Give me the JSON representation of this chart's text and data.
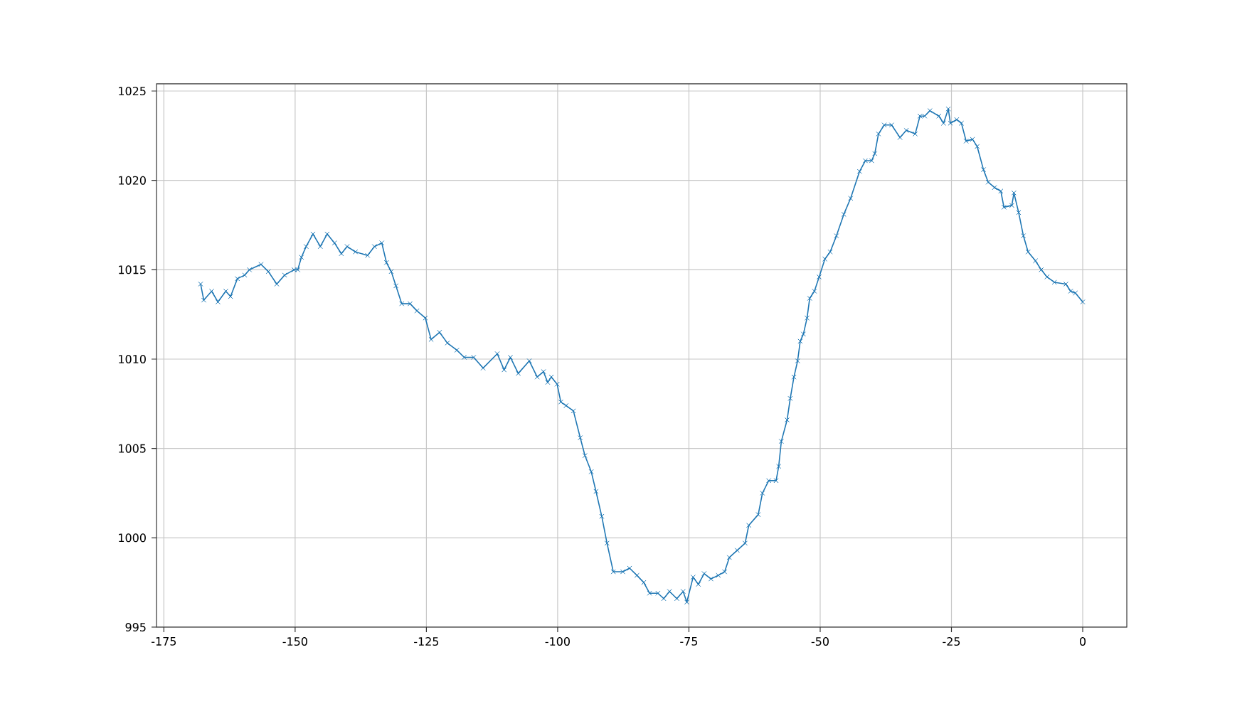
{
  "chart_data": {
    "type": "line",
    "color": "#1f77b4",
    "marker": "cross",
    "line_style": "solid",
    "grid": true,
    "xlim": [
      -176.4,
      8.4
    ],
    "ylim": [
      995,
      1025.4
    ],
    "xticks": [
      -175,
      -150,
      -125,
      -100,
      -75,
      -50,
      -25,
      0
    ],
    "yticks": [
      995,
      1000,
      1005,
      1010,
      1015,
      1020,
      1025
    ],
    "x": [
      -168.0,
      -167.4,
      -165.9,
      -164.7,
      -163.2,
      -162.3,
      -161.0,
      -159.6,
      -158.7,
      -156.5,
      -155.1,
      -153.5,
      -152.0,
      -150.2,
      -149.5,
      -148.8,
      -147.9,
      -146.6,
      -145.2,
      -143.9,
      -142.5,
      -141.2,
      -140.1,
      -138.5,
      -136.2,
      -134.9,
      -133.5,
      -132.6,
      -131.7,
      -130.8,
      -129.7,
      -128.1,
      -126.8,
      -125.2,
      -124.1,
      -122.5,
      -121.0,
      -119.2,
      -117.8,
      -116.0,
      -114.2,
      -111.5,
      -110.2,
      -109.0,
      -107.5,
      -105.4,
      -103.9,
      -102.7,
      -101.9,
      -101.2,
      -100.1,
      -99.4,
      -98.4,
      -97.0,
      -95.7,
      -94.8,
      -93.6,
      -92.7,
      -91.6,
      -90.6,
      -89.4,
      -87.6,
      -86.3,
      -84.9,
      -83.6,
      -82.5,
      -80.9,
      -79.8,
      -78.7,
      -77.3,
      -76.1,
      -75.4,
      -74.2,
      -73.2,
      -72.1,
      -70.8,
      -69.4,
      -68.2,
      -67.3,
      -65.8,
      -64.3,
      -63.6,
      -61.8,
      -61.0,
      -59.8,
      -58.4,
      -57.9,
      -57.4,
      -56.3,
      -55.7,
      -55.0,
      -54.3,
      -53.8,
      -53.2,
      -52.5,
      -52.0,
      -51.1,
      -50.2,
      -49.1,
      -48.1,
      -46.9,
      -45.5,
      -44.2,
      -42.5,
      -41.4,
      -40.2,
      -39.6,
      -38.9,
      -37.8,
      -36.4,
      -34.8,
      -33.6,
      -31.9,
      -31.0,
      -30.1,
      -29.1,
      -27.4,
      -26.5,
      -25.6,
      -25.2,
      -24.0,
      -23.1,
      -22.2,
      -21.0,
      -20.1,
      -18.9,
      -18.0,
      -16.8,
      -15.6,
      -15.0,
      -13.5,
      -13.1,
      -12.2,
      -11.3,
      -10.4,
      -9.0,
      -7.9,
      -6.8,
      -5.4,
      -3.2,
      -2.3,
      -1.4,
      0.0
    ],
    "values": [
      1014.2,
      1013.3,
      1013.8,
      1013.2,
      1013.8,
      1013.5,
      1014.5,
      1014.7,
      1015.0,
      1015.3,
      1014.9,
      1014.2,
      1014.7,
      1015.0,
      1015.0,
      1015.7,
      1016.3,
      1017.0,
      1016.3,
      1017.0,
      1016.5,
      1015.9,
      1016.3,
      1016.0,
      1015.8,
      1016.3,
      1016.5,
      1015.4,
      1014.9,
      1014.1,
      1013.1,
      1013.1,
      1012.7,
      1012.3,
      1011.1,
      1011.5,
      1010.9,
      1010.5,
      1010.1,
      1010.1,
      1009.5,
      1010.3,
      1009.4,
      1010.1,
      1009.2,
      1009.9,
      1009.0,
      1009.3,
      1008.7,
      1009.0,
      1008.6,
      1007.6,
      1007.4,
      1007.1,
      1005.6,
      1004.6,
      1003.7,
      1002.6,
      1001.2,
      999.7,
      998.1,
      998.1,
      998.3,
      997.9,
      997.5,
      996.9,
      996.9,
      996.6,
      997.0,
      996.6,
      997.0,
      996.4,
      997.8,
      997.4,
      998.0,
      997.7,
      997.9,
      998.1,
      998.9,
      999.3,
      999.7,
      1000.7,
      1001.3,
      1002.5,
      1003.2,
      1003.2,
      1004.0,
      1005.4,
      1006.6,
      1007.8,
      1009.0,
      1009.9,
      1011.0,
      1011.4,
      1012.3,
      1013.4,
      1013.8,
      1014.6,
      1015.6,
      1016.0,
      1016.9,
      1018.1,
      1019.0,
      1020.5,
      1021.1,
      1021.1,
      1021.5,
      1022.6,
      1023.1,
      1023.1,
      1022.4,
      1022.8,
      1022.6,
      1023.6,
      1023.6,
      1023.9,
      1023.6,
      1023.2,
      1024.0,
      1023.2,
      1023.4,
      1023.2,
      1022.2,
      1022.3,
      1021.9,
      1020.6,
      1019.9,
      1019.6,
      1019.4,
      1018.5,
      1018.6,
      1019.3,
      1018.2,
      1016.9,
      1016.0,
      1015.5,
      1015.0,
      1014.6,
      1014.3,
      1014.2,
      1013.8,
      1013.7,
      1013.2
    ]
  }
}
